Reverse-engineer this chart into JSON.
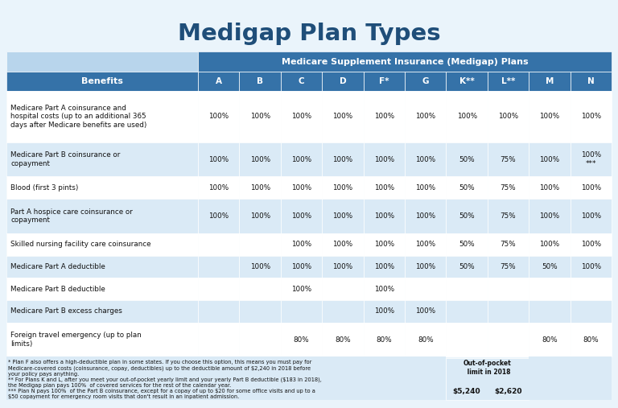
{
  "title": "Medigap Plan Types",
  "title_color": "#1F4E79",
  "header_main": "Medicare Supplement Insurance (Medigap) Plans",
  "header_main_bg": "#3572A8",
  "header_main_color": "#FFFFFF",
  "col_header_bg": "#3572A8",
  "col_header_color": "#FFFFFF",
  "benefits_header": "Benefits",
  "plan_cols": [
    "A",
    "B",
    "C",
    "D",
    "F*",
    "G",
    "K**",
    "L**",
    "M",
    "N"
  ],
  "rows": [
    {
      "benefit": "Medicare Part A coinsurance and\nhospital costs (up to an additional 365\ndays after Medicare benefits are used)",
      "values": [
        "100%",
        "100%",
        "100%",
        "100%",
        "100%",
        "100%",
        "100%",
        "100%",
        "100%",
        "100%"
      ],
      "tall": true
    },
    {
      "benefit": "Medicare Part B coinsurance or\ncopayment",
      "values": [
        "100%",
        "100%",
        "100%",
        "100%",
        "100%",
        "100%",
        "50%",
        "75%",
        "100%",
        "100%\n***"
      ],
      "tall": false
    },
    {
      "benefit": "Blood (first 3 pints)",
      "values": [
        "100%",
        "100%",
        "100%",
        "100%",
        "100%",
        "100%",
        "50%",
        "75%",
        "100%",
        "100%"
      ],
      "tall": false
    },
    {
      "benefit": "Part A hospice care coinsurance or\ncopayment",
      "values": [
        "100%",
        "100%",
        "100%",
        "100%",
        "100%",
        "100%",
        "50%",
        "75%",
        "100%",
        "100%"
      ],
      "tall": false
    },
    {
      "benefit": "Skilled nursing facility care coinsurance",
      "values": [
        "",
        "",
        "100%",
        "100%",
        "100%",
        "100%",
        "50%",
        "75%",
        "100%",
        "100%"
      ],
      "tall": false
    },
    {
      "benefit": "Medicare Part A deductible",
      "values": [
        "",
        "100%",
        "100%",
        "100%",
        "100%",
        "100%",
        "50%",
        "75%",
        "50%",
        "100%"
      ],
      "tall": false
    },
    {
      "benefit": "Medicare Part B deductible",
      "values": [
        "",
        "",
        "100%",
        "",
        "100%",
        "",
        "",
        "",
        "",
        ""
      ],
      "tall": false
    },
    {
      "benefit": "Medicare Part B excess charges",
      "values": [
        "",
        "",
        "",
        "",
        "100%",
        "100%",
        "",
        "",
        "",
        ""
      ],
      "tall": false
    },
    {
      "benefit": "Foreign travel emergency (up to plan\nlimits)",
      "values": [
        "",
        "",
        "80%",
        "80%",
        "80%",
        "80%",
        "",
        "",
        "80%",
        "80%"
      ],
      "tall": false
    }
  ],
  "footnote_lines": [
    "* Plan F also offers a high-deductible plan in some states. If you choose this option, this means you must pay for",
    "Medicare-covered costs (coinsurance, copay, deductibles) up to the deductible amount of $2,240 in 2018 before",
    "your policy pays anything.",
    "** For Plans K and L, after you meet your out-of-pocket yearly limit and your yearly Part B deductible ($183 in 2018),",
    "the Medigap plan pays 100%  of covered services for the rest of the calendar year.",
    "*** Plan N pays 100%  of the Part B coinsurance, except for a copay of up to $20 for some office visits and up to a",
    "$50 copayment for emergency room visits that don't result in an inpatient admission."
  ],
  "oop_label": "Out-of-pocket\n limit in 2018",
  "oop_k": "$5,240",
  "oop_l": "$2,620",
  "row_colors_alt": [
    "#FFFFFF",
    "#DAEAF6",
    "#FFFFFF",
    "#DAEAF6",
    "#FFFFFF",
    "#DAEAF6",
    "#FFFFFF",
    "#DAEAF6",
    "#FFFFFF"
  ],
  "bg_color": "#EAF4FB",
  "table_bg": "#C5DCF0"
}
